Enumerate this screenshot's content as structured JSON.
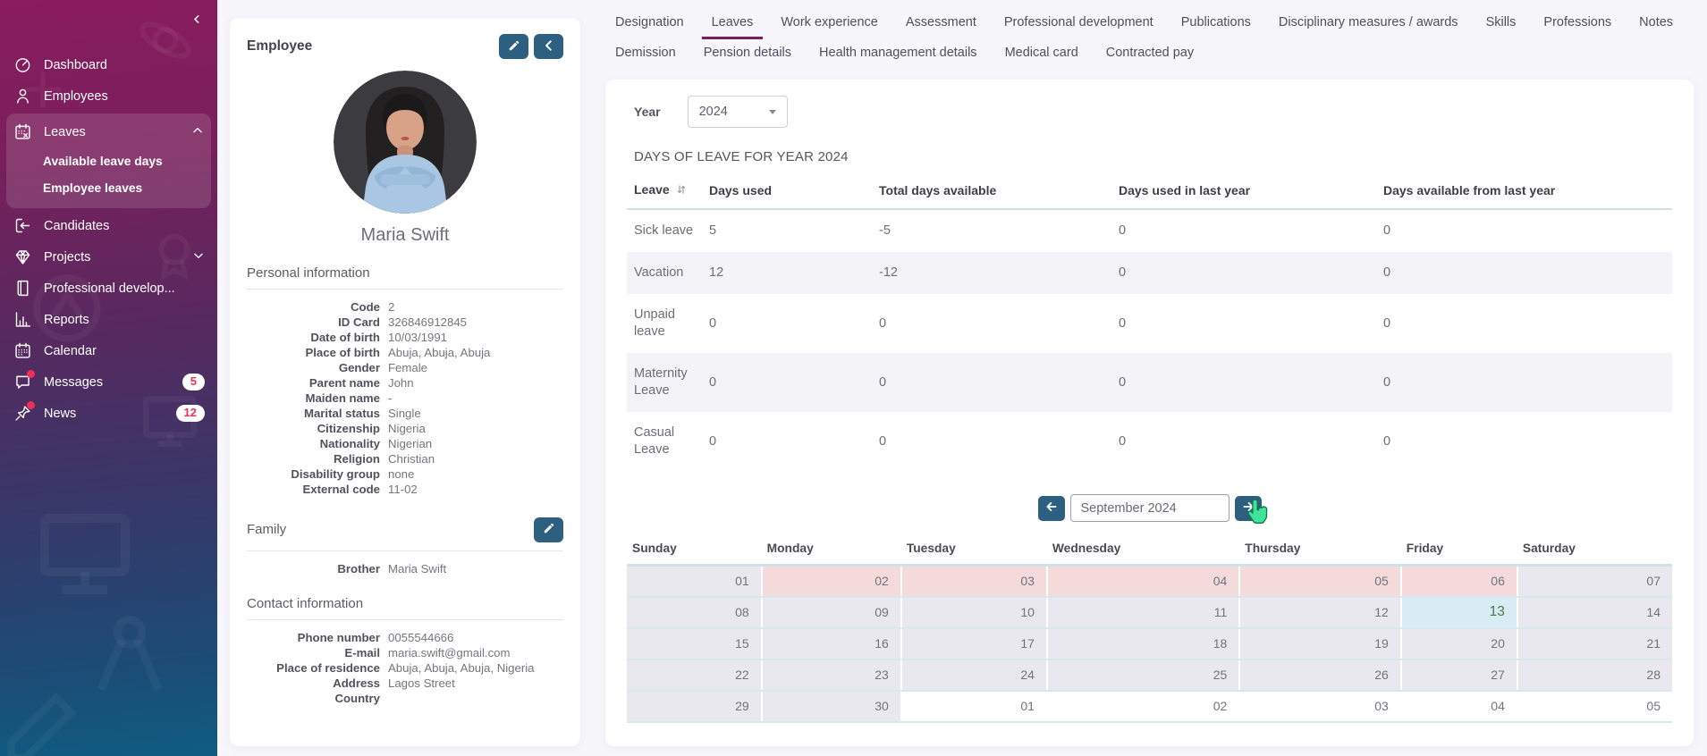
{
  "sidebar": {
    "items": [
      {
        "icon": "dashboard-icon",
        "label": "Dashboard"
      },
      {
        "icon": "employees-icon",
        "label": "Employees"
      },
      {
        "icon": "leaves-icon",
        "label": "Leaves",
        "expanded": true,
        "children": [
          "Available leave days",
          "Employee leaves"
        ]
      },
      {
        "icon": "candidates-icon",
        "label": "Candidates"
      },
      {
        "icon": "projects-icon",
        "label": "Projects",
        "collapsible": true
      },
      {
        "icon": "professional-development-icon",
        "label": "Professional develop..."
      },
      {
        "icon": "reports-icon",
        "label": "Reports"
      },
      {
        "icon": "calendar-icon",
        "label": "Calendar"
      },
      {
        "icon": "messages-icon",
        "label": "Messages",
        "badge": "5",
        "notification_dot": true
      },
      {
        "icon": "news-icon",
        "label": "News",
        "badge": "12",
        "notification_dot": true
      }
    ]
  },
  "employee_panel": {
    "title": "Employee",
    "name": "Maria Swift",
    "personal": {
      "title": "Personal information",
      "fields": [
        {
          "label": "Code",
          "value": "2"
        },
        {
          "label": "ID Card",
          "value": "326846912845"
        },
        {
          "label": "Date of birth",
          "value": "10/03/1991"
        },
        {
          "label": "Place of birth",
          "value": "Abuja, Abuja, Abuja"
        },
        {
          "label": "Gender",
          "value": "Female"
        },
        {
          "label": "Parent name",
          "value": "John"
        },
        {
          "label": "Maiden name",
          "value": "-"
        },
        {
          "label": "Marital status",
          "value": "Single"
        },
        {
          "label": "Citizenship",
          "value": "Nigeria"
        },
        {
          "label": "Nationality",
          "value": "Nigerian"
        },
        {
          "label": "Religion",
          "value": "Christian"
        },
        {
          "label": "Disability group",
          "value": "none"
        },
        {
          "label": "External code",
          "value": "11-02"
        }
      ]
    },
    "family": {
      "title": "Family",
      "fields": [
        {
          "label": "Brother",
          "value": "Maria Swift"
        }
      ]
    },
    "contact": {
      "title": "Contact information",
      "fields": [
        {
          "label": "Phone number",
          "value": "0055544666"
        },
        {
          "label": "E-mail",
          "value": "maria.swift@gmail.com"
        },
        {
          "label": "Place of residence",
          "value": "Abuja, Abuja, Abuja, Nigeria"
        },
        {
          "label": "Address",
          "value": "Lagos Street"
        },
        {
          "label": "Country",
          "value": ""
        }
      ]
    }
  },
  "tabs": {
    "active": "Leaves",
    "row1": [
      "Designation",
      "Leaves",
      "Work experience",
      "Assessment",
      "Professional development",
      "Publications",
      "Disciplinary measures / awards",
      "Skills",
      "Professions",
      "Notes"
    ],
    "row2": [
      "Demission",
      "Pension details",
      "Health management details",
      "Medical card",
      "Contracted pay"
    ]
  },
  "leave_section": {
    "year_label": "Year",
    "year_value": "2024",
    "table_title": "DAYS OF LEAVE FOR YEAR 2024",
    "columns": [
      "Leave",
      "Days used",
      "Total days available",
      "Days used in last year",
      "Days available from last year"
    ],
    "rows": [
      {
        "leave": "Sick leave",
        "days_used": "5",
        "total_available": "-5",
        "used_last_year": "0",
        "available_from_last_year": "0"
      },
      {
        "leave": "Vacation",
        "days_used": "12",
        "total_available": "-12",
        "used_last_year": "0",
        "available_from_last_year": "0"
      },
      {
        "leave": "Unpaid leave",
        "days_used": "0",
        "total_available": "0",
        "used_last_year": "0",
        "available_from_last_year": "0"
      },
      {
        "leave": "Maternity Leave",
        "days_used": "0",
        "total_available": "0",
        "used_last_year": "0",
        "available_from_last_year": "0"
      },
      {
        "leave": "Casual Leave",
        "days_used": "0",
        "total_available": "0",
        "used_last_year": "0",
        "available_from_last_year": "0"
      }
    ]
  },
  "calendar": {
    "month_label": "September 2024",
    "day_headers": [
      "Sunday",
      "Monday",
      "Tuesday",
      "Wednesday",
      "Thursday",
      "Friday",
      "Saturday"
    ],
    "weeks": [
      [
        {
          "day": "01",
          "type": "default"
        },
        {
          "day": "02",
          "type": "leave"
        },
        {
          "day": "03",
          "type": "leave"
        },
        {
          "day": "04",
          "type": "leave"
        },
        {
          "day": "05",
          "type": "leave"
        },
        {
          "day": "06",
          "type": "leave"
        },
        {
          "day": "07",
          "type": "default"
        }
      ],
      [
        {
          "day": "08",
          "type": "default"
        },
        {
          "day": "09",
          "type": "default"
        },
        {
          "day": "10",
          "type": "default"
        },
        {
          "day": "11",
          "type": "default"
        },
        {
          "day": "12",
          "type": "default"
        },
        {
          "day": "13",
          "type": "today"
        },
        {
          "day": "14",
          "type": "default"
        }
      ],
      [
        {
          "day": "15",
          "type": "default"
        },
        {
          "day": "16",
          "type": "default"
        },
        {
          "day": "17",
          "type": "default"
        },
        {
          "day": "18",
          "type": "default"
        },
        {
          "day": "19",
          "type": "default"
        },
        {
          "day": "20",
          "type": "default"
        },
        {
          "day": "21",
          "type": "default"
        }
      ],
      [
        {
          "day": "22",
          "type": "default"
        },
        {
          "day": "23",
          "type": "default"
        },
        {
          "day": "24",
          "type": "default"
        },
        {
          "day": "25",
          "type": "default"
        },
        {
          "day": "26",
          "type": "default"
        },
        {
          "day": "27",
          "type": "default"
        },
        {
          "day": "28",
          "type": "default"
        }
      ],
      [
        {
          "day": "29",
          "type": "default"
        },
        {
          "day": "30",
          "type": "default"
        },
        {
          "day": "01",
          "type": "other-month"
        },
        {
          "day": "02",
          "type": "other-month"
        },
        {
          "day": "03",
          "type": "other-month"
        },
        {
          "day": "04",
          "type": "other-month"
        },
        {
          "day": "05",
          "type": "other-month"
        }
      ]
    ]
  },
  "colors": {
    "accent_active_tab": "#7c1e5c",
    "button": "#2d5f80",
    "leave_day_cell": "#f4dada",
    "today_cell": "#d8ecf6",
    "today_text": "#48793a",
    "badge_text": "#e8335a",
    "sidebar_top": "#8a1c5f",
    "sidebar_bottom": "#0f5c80"
  }
}
